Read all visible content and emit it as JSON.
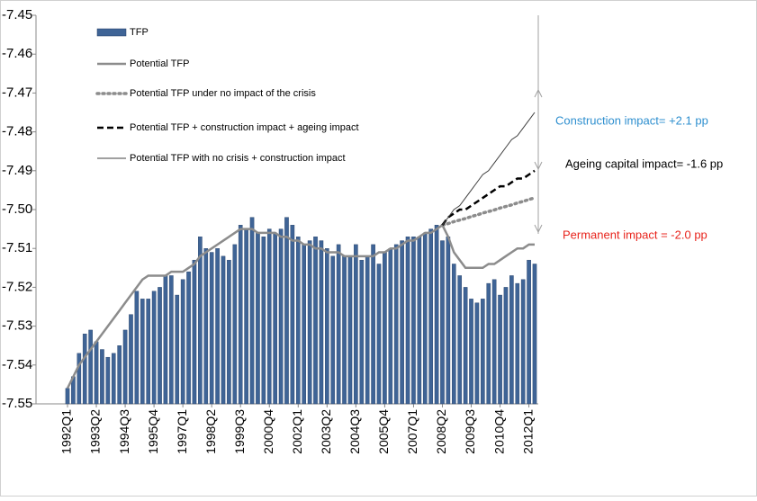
{
  "chart_data": {
    "type": "bar",
    "categories": [
      "1992Q1",
      null,
      null,
      null,
      null,
      "1993Q2",
      null,
      null,
      null,
      null,
      "1994Q3",
      null,
      null,
      null,
      null,
      "1995Q4",
      null,
      null,
      null,
      null,
      "1997Q1",
      null,
      null,
      null,
      null,
      "1998Q2",
      null,
      null,
      null,
      null,
      "1999Q3",
      null,
      null,
      null,
      null,
      "2000Q4",
      null,
      null,
      null,
      null,
      "2002Q1",
      null,
      null,
      null,
      null,
      "2003Q2",
      null,
      null,
      null,
      null,
      "2004Q3",
      null,
      null,
      null,
      null,
      "2005Q4",
      null,
      null,
      null,
      null,
      "2007Q1",
      null,
      null,
      null,
      null,
      "2008Q2",
      null,
      null,
      null,
      null,
      "2009Q3",
      null,
      null,
      null,
      null,
      "2010Q4",
      null,
      null,
      null,
      null,
      "2012Q1",
      null
    ],
    "series": [
      {
        "name": "TFP",
        "type": "bar",
        "color": "#3f6496",
        "values": [
          -7.546,
          -7.543,
          -7.537,
          -7.532,
          -7.531,
          -7.534,
          -7.536,
          -7.538,
          -7.537,
          -7.535,
          -7.531,
          -7.527,
          -7.521,
          -7.523,
          -7.523,
          -7.521,
          -7.52,
          -7.517,
          -7.517,
          -7.522,
          -7.518,
          -7.516,
          -7.513,
          -7.507,
          -7.51,
          -7.511,
          -7.51,
          -7.512,
          -7.513,
          -7.509,
          -7.504,
          -7.505,
          -7.502,
          -7.506,
          -7.507,
          -7.505,
          -7.506,
          -7.505,
          -7.502,
          -7.504,
          -7.507,
          -7.509,
          -7.508,
          -7.507,
          -7.508,
          -7.51,
          -7.512,
          -7.509,
          -7.512,
          -7.512,
          -7.509,
          -7.513,
          -7.512,
          -7.509,
          -7.514,
          -7.511,
          -7.51,
          -7.509,
          -7.508,
          -7.507,
          -7.507,
          -7.507,
          -7.506,
          -7.505,
          -7.504,
          -7.508,
          -7.507,
          -7.514,
          -7.517,
          -7.52,
          -7.523,
          -7.524,
          -7.523,
          -7.519,
          -7.518,
          -7.522,
          -7.52,
          -7.517,
          -7.519,
          -7.518,
          -7.513,
          -7.514
        ]
      },
      {
        "name": "Potential TFP",
        "type": "line",
        "color": "#8c8c8c",
        "style": "solid",
        "width": 2.5,
        "values": [
          -7.546,
          -7.543,
          -7.54,
          -7.538,
          -7.536,
          -7.534,
          -7.532,
          -7.53,
          -7.528,
          -7.526,
          -7.524,
          -7.522,
          -7.52,
          -7.518,
          -7.517,
          -7.517,
          -7.517,
          -7.517,
          -7.516,
          -7.516,
          -7.516,
          -7.515,
          -7.514,
          -7.512,
          -7.511,
          -7.51,
          -7.509,
          -7.508,
          -7.507,
          -7.506,
          -7.505,
          -7.505,
          -7.505,
          -7.506,
          -7.506,
          -7.506,
          -7.506,
          -7.507,
          -7.507,
          -7.508,
          -7.508,
          -7.509,
          -7.509,
          -7.51,
          -7.51,
          -7.511,
          -7.511,
          -7.511,
          -7.512,
          -7.512,
          -7.512,
          -7.512,
          -7.512,
          -7.512,
          -7.511,
          -7.511,
          -7.51,
          -7.51,
          -7.509,
          -7.508,
          -7.508,
          -7.507,
          -7.506,
          -7.506,
          -7.505,
          -7.504,
          -7.507,
          -7.511,
          -7.513,
          -7.515,
          -7.515,
          -7.515,
          -7.515,
          -7.514,
          -7.514,
          -7.513,
          -7.512,
          -7.511,
          -7.51,
          -7.51,
          -7.509,
          -7.509
        ]
      },
      {
        "name": "Potential TFP under no impact of the crisis",
        "type": "line",
        "color": "#8c8c8c",
        "style": "dotted",
        "width": 3.5,
        "values": [
          null,
          null,
          null,
          null,
          null,
          null,
          null,
          null,
          null,
          null,
          null,
          null,
          null,
          null,
          null,
          null,
          null,
          null,
          null,
          null,
          null,
          null,
          null,
          null,
          null,
          null,
          null,
          null,
          null,
          null,
          null,
          null,
          null,
          null,
          null,
          null,
          null,
          null,
          null,
          null,
          null,
          null,
          null,
          null,
          null,
          null,
          null,
          null,
          null,
          null,
          null,
          null,
          null,
          null,
          null,
          null,
          null,
          null,
          null,
          null,
          null,
          null,
          null,
          null,
          null,
          -7.504,
          -7.5036,
          -7.5031,
          -7.5027,
          -7.5023,
          -7.5018,
          -7.5014,
          -7.5009,
          -7.5005,
          -7.5001,
          -7.4996,
          -7.4992,
          -7.4988,
          -7.4983,
          -7.4979,
          -7.4974,
          -7.497
        ]
      },
      {
        "name": "Potential TFP + construction impact + ageing impact",
        "type": "line",
        "color": "#000000",
        "style": "dashed",
        "width": 2.5,
        "values": [
          null,
          null,
          null,
          null,
          null,
          null,
          null,
          null,
          null,
          null,
          null,
          null,
          null,
          null,
          null,
          null,
          null,
          null,
          null,
          null,
          null,
          null,
          null,
          null,
          null,
          null,
          null,
          null,
          null,
          null,
          null,
          null,
          null,
          null,
          null,
          null,
          null,
          null,
          null,
          null,
          null,
          null,
          null,
          null,
          null,
          null,
          null,
          null,
          null,
          null,
          null,
          null,
          null,
          null,
          null,
          null,
          null,
          null,
          null,
          null,
          null,
          null,
          null,
          null,
          null,
          -7.504,
          -7.502,
          -7.501,
          -7.5,
          -7.5,
          -7.499,
          -7.498,
          -7.497,
          -7.496,
          -7.495,
          -7.494,
          -7.494,
          -7.493,
          -7.492,
          -7.492,
          -7.491,
          -7.49
        ]
      },
      {
        "name": "Potential TFP with no crisis + construction impact",
        "type": "line",
        "color": "#404040",
        "style": "solid",
        "width": 1,
        "values": [
          null,
          null,
          null,
          null,
          null,
          null,
          null,
          null,
          null,
          null,
          null,
          null,
          null,
          null,
          null,
          null,
          null,
          null,
          null,
          null,
          null,
          null,
          null,
          null,
          null,
          null,
          null,
          null,
          null,
          null,
          null,
          null,
          null,
          null,
          null,
          null,
          null,
          null,
          null,
          null,
          null,
          null,
          null,
          null,
          null,
          null,
          null,
          null,
          null,
          null,
          null,
          null,
          null,
          null,
          null,
          null,
          null,
          null,
          null,
          null,
          null,
          null,
          null,
          null,
          null,
          -7.504,
          -7.502,
          -7.5,
          -7.499,
          -7.497,
          -7.495,
          -7.493,
          -7.491,
          -7.49,
          -7.488,
          -7.486,
          -7.484,
          -7.482,
          -7.481,
          -7.479,
          -7.477,
          -7.475
        ]
      }
    ],
    "ylim": [
      -7.55,
      -7.45
    ],
    "yticks": [
      -7.45,
      -7.46,
      -7.47,
      -7.48,
      -7.49,
      {
        "value": -7.5,
        "label": "-7.50"
      },
      -7.51,
      -7.52,
      -7.53,
      -7.54,
      -7.55
    ],
    "grid": false,
    "legend": "upper-left",
    "annotations": [
      {
        "text": "Construction impact= +2.1 pp",
        "color": "#2e8fcf"
      },
      {
        "text": "Ageing capital impact= -1.6 pp",
        "color": "#000000"
      },
      {
        "text": "Permanent impact = -2.0 pp",
        "color": "#e8241c"
      }
    ]
  }
}
